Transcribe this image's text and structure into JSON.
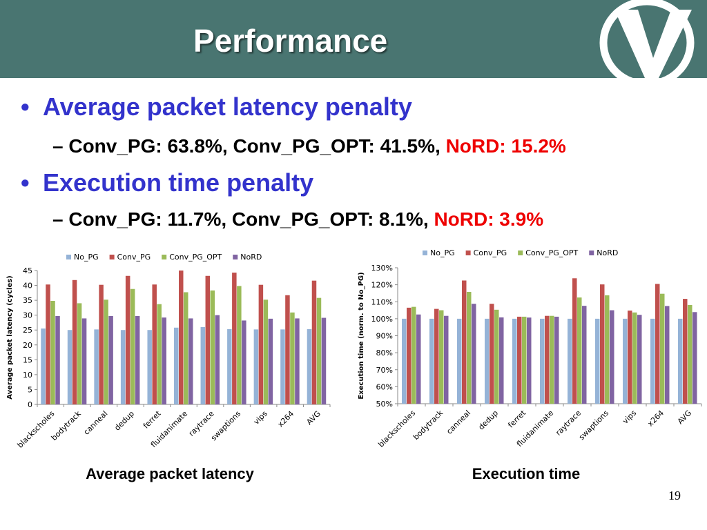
{
  "slide": {
    "title": "Performance",
    "page_number": "19"
  },
  "bullets": [
    {
      "text": "Average packet latency penalty",
      "sub_label": "Conv_PG: 63.8%, Conv_PG_OPT: 41.5%,",
      "sub_highlight": "NoRD: 15.2%"
    },
    {
      "text": "Execution time penalty",
      "sub_label": "Conv_PG: 11.7%, Conv_PG_OPT: 8.1%,",
      "sub_highlight": "NoRD: 3.9%"
    }
  ],
  "captions": {
    "left": "Average packet latency",
    "right": "Execution time"
  },
  "colors": {
    "header": "#497571",
    "bullet_blue": "#3333cc",
    "highlight_red": "#ee0000",
    "No_PG": "#95b3d7",
    "Conv_PG": "#c0504d",
    "Conv_PG_OPT": "#9bbb59",
    "NoRD": "#8064a2"
  },
  "chart_data": [
    {
      "type": "bar",
      "title": "",
      "xlabel": "",
      "ylabel": "Average packet  latency (cycles)",
      "ylim": [
        0,
        45
      ],
      "yticks": [
        "0",
        "5",
        "10",
        "15",
        "20",
        "25",
        "30",
        "35",
        "40",
        "45"
      ],
      "legend": "top",
      "grid": false,
      "categories": [
        "blackscholes",
        "bodytrack",
        "canneal",
        "dedup",
        "ferret",
        "fluidanimate",
        "raytrace",
        "swaptions",
        "vips",
        "x264",
        "AVG"
      ],
      "series": [
        {
          "name": "No_PG",
          "values": [
            25.5,
            25.0,
            25.2,
            25.0,
            25.0,
            25.8,
            26.0,
            25.3,
            25.2,
            25.2,
            25.3
          ]
        },
        {
          "name": "Conv_PG",
          "values": [
            40.3,
            41.8,
            40.2,
            43.2,
            40.3,
            45.0,
            43.2,
            44.3,
            40.2,
            36.7,
            41.6
          ]
        },
        {
          "name": "Conv_PG_OPT",
          "values": [
            34.8,
            34.0,
            35.2,
            38.8,
            33.7,
            37.7,
            38.3,
            39.8,
            35.2,
            30.9,
            35.8
          ]
        },
        {
          "name": "NoRD",
          "values": [
            29.7,
            28.9,
            29.7,
            29.7,
            29.2,
            28.9,
            30.0,
            28.2,
            28.8,
            28.9,
            29.1
          ]
        }
      ]
    },
    {
      "type": "bar",
      "title": "",
      "xlabel": "",
      "ylabel": "Execution time (norm. to No_PG)",
      "ylim": [
        50,
        130
      ],
      "yticks": [
        "50%",
        "60%",
        "70%",
        "80%",
        "90%",
        "100%",
        "110%",
        "120%",
        "130%"
      ],
      "legend": "top",
      "grid": false,
      "categories": [
        "blackscholes",
        "bodytrack",
        "canneal",
        "dedup",
        "ferret",
        "fluidanimate",
        "raytrace",
        "swaptions",
        "vips",
        "x264",
        "AVG"
      ],
      "series": [
        {
          "name": "No_PG",
          "values": [
            100,
            100,
            100,
            100,
            100,
            100,
            100,
            100,
            100,
            100,
            100
          ]
        },
        {
          "name": "Conv_PG",
          "values": [
            106.5,
            105.8,
            122.5,
            108.8,
            101.2,
            101.7,
            123.8,
            120.2,
            104.8,
            120.5,
            111.7
          ]
        },
        {
          "name": "Conv_PG_OPT",
          "values": [
            107.0,
            105.0,
            115.8,
            105.3,
            101.2,
            101.7,
            112.5,
            113.8,
            103.7,
            114.7,
            108.1
          ]
        },
        {
          "name": "NoRD",
          "values": [
            102.5,
            101.7,
            108.8,
            100.8,
            100.7,
            101.2,
            107.6,
            105.0,
            102.3,
            107.5,
            103.9
          ]
        }
      ]
    }
  ]
}
